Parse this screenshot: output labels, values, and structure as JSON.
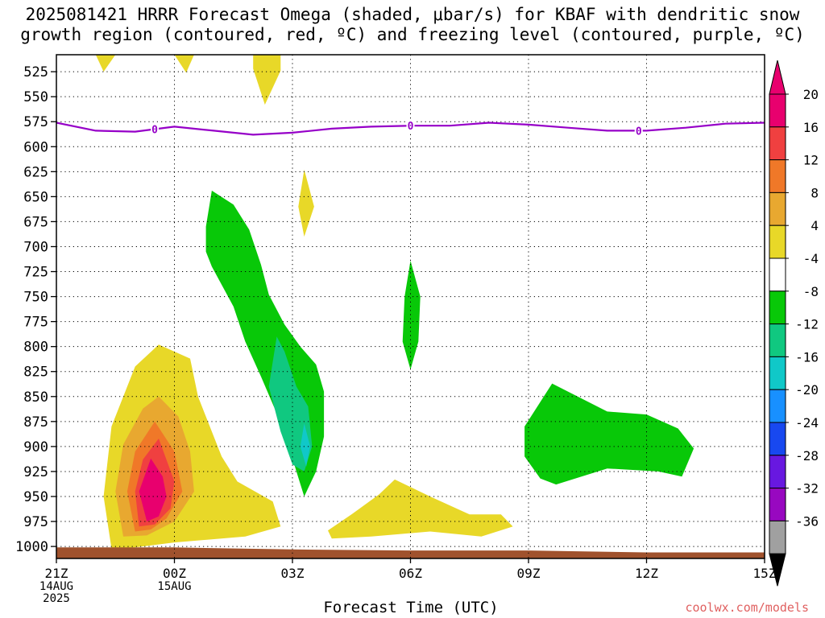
{
  "header": {
    "title_line1": "2025081421 HRRR Forecast Omega (shaded, μbar/s) for KBAF with dendritic snow",
    "title_line2": "growth region (contoured, red, ºC) and freezing level (contoured, purple, ºC)"
  },
  "watermark": "coolwx.com/models",
  "chart_data": {
    "type": "heatmap",
    "xlabel": "Forecast Time (UTC)",
    "ylabel": "",
    "x_ticks": [
      {
        "value": 0,
        "lines": [
          "21Z",
          "14AUG",
          "2025"
        ]
      },
      {
        "value": 3,
        "lines": [
          "00Z",
          "15AUG"
        ]
      },
      {
        "value": 6,
        "lines": [
          "03Z"
        ]
      },
      {
        "value": 9,
        "lines": [
          "06Z"
        ]
      },
      {
        "value": 12,
        "lines": [
          "09Z"
        ]
      },
      {
        "value": 15,
        "lines": [
          "12Z"
        ]
      },
      {
        "value": 18,
        "lines": [
          "15Z"
        ]
      }
    ],
    "xlim": [
      0,
      18
    ],
    "y_ticks": [
      525,
      550,
      575,
      600,
      625,
      650,
      675,
      700,
      725,
      750,
      775,
      800,
      825,
      850,
      875,
      900,
      925,
      950,
      975,
      1000
    ],
    "ylim": [
      1012,
      508
    ],
    "grid": true,
    "colorbar": {
      "labels": [
        "20",
        "16",
        "12",
        "8",
        "4",
        "-4",
        "-8",
        "-12",
        "-16",
        "-20",
        "-24",
        "-28",
        "-32",
        "-36"
      ],
      "colors": [
        "#e8006e",
        "#f04040",
        "#f07828",
        "#e8a830",
        "#e8d828",
        "#ffffff",
        "#08c808",
        "#10c880",
        "#10c8c8",
        "#1890ff",
        "#1848f0",
        "#6818e0",
        "#9808c0",
        "#a0a0a0"
      ],
      "top_color": "#e8006e",
      "bottom_color": "#000000"
    },
    "freezing_level": {
      "color": "#9600c8",
      "label": "0",
      "label_x": [
        2.5,
        9.0,
        14.8
      ],
      "points": [
        [
          0,
          576
        ],
        [
          1,
          584
        ],
        [
          2,
          585
        ],
        [
          3,
          580
        ],
        [
          4,
          584
        ],
        [
          5,
          588
        ],
        [
          6,
          586
        ],
        [
          7,
          582
        ],
        [
          8,
          580
        ],
        [
          9,
          579
        ],
        [
          10,
          579
        ],
        [
          11,
          576
        ],
        [
          12,
          578
        ],
        [
          13,
          581
        ],
        [
          14,
          584
        ],
        [
          15,
          584
        ],
        [
          16,
          581
        ],
        [
          17,
          577
        ],
        [
          18,
          576
        ]
      ]
    },
    "surface": {
      "color": "#a0522d",
      "points": [
        [
          0,
          1001
        ],
        [
          3,
          1001
        ],
        [
          6,
          1003
        ],
        [
          9,
          1004
        ],
        [
          12,
          1004
        ],
        [
          15,
          1006
        ],
        [
          18,
          1006
        ]
      ]
    },
    "regions": [
      {
        "name": "omega-positive-4",
        "color": "#e8d828",
        "points": [
          [
            1.0,
            508
          ],
          [
            1.5,
            508
          ],
          [
            1.2,
            525
          ]
        ]
      },
      {
        "name": "omega-positive-4",
        "color": "#e8d828",
        "points": [
          [
            3.0,
            508
          ],
          [
            3.5,
            508
          ],
          [
            3.3,
            526
          ]
        ]
      },
      {
        "name": "omega-positive-4",
        "color": "#e8d828",
        "points": [
          [
            5.0,
            508
          ],
          [
            5.7,
            508
          ],
          [
            5.7,
            524
          ],
          [
            5.3,
            558
          ],
          [
            5.0,
            522
          ]
        ]
      },
      {
        "name": "omega-positive-4",
        "color": "#e8d828",
        "points": [
          [
            6.3,
            623
          ],
          [
            6.55,
            660
          ],
          [
            6.3,
            690
          ],
          [
            6.15,
            660
          ]
        ]
      },
      {
        "name": "omega-positive-4",
        "color": "#e8d828",
        "points": [
          [
            1.4,
            1002
          ],
          [
            1.2,
            950
          ],
          [
            1.4,
            880
          ],
          [
            2.0,
            820
          ],
          [
            2.6,
            798
          ],
          [
            3.4,
            812
          ],
          [
            3.6,
            850
          ],
          [
            4.2,
            910
          ],
          [
            4.6,
            935
          ],
          [
            5.5,
            955
          ],
          [
            5.7,
            980
          ],
          [
            4.8,
            990
          ],
          [
            3.0,
            996
          ],
          [
            2.0,
            1001
          ]
        ]
      },
      {
        "name": "omega-positive-4",
        "color": "#e8d828",
        "points": [
          [
            6.9,
            984
          ],
          [
            7.5,
            968
          ],
          [
            8.2,
            948
          ],
          [
            8.6,
            933
          ],
          [
            9.5,
            950
          ],
          [
            10.5,
            968
          ],
          [
            11.3,
            968
          ],
          [
            11.6,
            980
          ],
          [
            10.8,
            990
          ],
          [
            9.5,
            985
          ],
          [
            8.0,
            990
          ],
          [
            7.0,
            992
          ]
        ]
      },
      {
        "name": "omega-positive-8",
        "color": "#e8a830",
        "points": [
          [
            1.7,
            990
          ],
          [
            1.5,
            945
          ],
          [
            1.7,
            898
          ],
          [
            2.2,
            862
          ],
          [
            2.6,
            850
          ],
          [
            3.1,
            870
          ],
          [
            3.4,
            905
          ],
          [
            3.5,
            945
          ],
          [
            3.0,
            975
          ],
          [
            2.3,
            989
          ]
        ]
      },
      {
        "name": "omega-positive-12",
        "color": "#f07828",
        "points": [
          [
            2.0,
            985
          ],
          [
            1.8,
            945
          ],
          [
            2.0,
            905
          ],
          [
            2.5,
            875
          ],
          [
            3.0,
            905
          ],
          [
            3.2,
            945
          ],
          [
            2.8,
            972
          ],
          [
            2.4,
            983
          ]
        ]
      },
      {
        "name": "omega-positive-16",
        "color": "#f04040",
        "points": [
          [
            2.1,
            980
          ],
          [
            2.0,
            945
          ],
          [
            2.2,
            913
          ],
          [
            2.6,
            892
          ],
          [
            3.0,
            935
          ],
          [
            2.9,
            962
          ],
          [
            2.5,
            978
          ]
        ]
      },
      {
        "name": "omega-positive-20",
        "color": "#e8006e",
        "points": [
          [
            2.3,
            975
          ],
          [
            2.1,
            945
          ],
          [
            2.4,
            912
          ],
          [
            2.7,
            930
          ],
          [
            2.8,
            950
          ],
          [
            2.6,
            970
          ]
        ]
      },
      {
        "name": "omega-negative-4",
        "color": "#08c808",
        "points": [
          [
            3.95,
            644
          ],
          [
            3.8,
            680
          ],
          [
            3.8,
            705
          ],
          [
            3.95,
            720
          ],
          [
            4.5,
            760
          ],
          [
            4.8,
            795
          ],
          [
            5.2,
            830
          ],
          [
            5.8,
            885
          ],
          [
            6.1,
            925
          ],
          [
            6.3,
            950
          ],
          [
            6.6,
            925
          ],
          [
            6.8,
            890
          ],
          [
            6.8,
            845
          ],
          [
            6.6,
            818
          ],
          [
            6.2,
            800
          ],
          [
            5.8,
            778
          ],
          [
            5.4,
            748
          ],
          [
            5.2,
            718
          ],
          [
            4.9,
            683
          ],
          [
            4.5,
            658
          ]
        ]
      },
      {
        "name": "omega-negative-4",
        "color": "#08c808",
        "points": [
          [
            9.0,
            714
          ],
          [
            9.25,
            750
          ],
          [
            9.2,
            795
          ],
          [
            9.0,
            823
          ],
          [
            8.8,
            795
          ],
          [
            8.85,
            750
          ]
        ]
      },
      {
        "name": "omega-negative-4",
        "color": "#08c808",
        "points": [
          [
            11.9,
            880
          ],
          [
            12.6,
            837
          ],
          [
            13.5,
            855
          ],
          [
            14.0,
            865
          ],
          [
            15.0,
            868
          ],
          [
            15.8,
            882
          ],
          [
            16.2,
            902
          ],
          [
            15.9,
            930
          ],
          [
            15.3,
            925
          ],
          [
            14.0,
            922
          ],
          [
            12.7,
            938
          ],
          [
            12.3,
            932
          ],
          [
            11.9,
            910
          ]
        ]
      },
      {
        "name": "omega-negative-8",
        "color": "#10c880",
        "points": [
          [
            5.6,
            790
          ],
          [
            5.4,
            840
          ],
          [
            5.7,
            885
          ],
          [
            6.0,
            918
          ],
          [
            6.3,
            925
          ],
          [
            6.5,
            900
          ],
          [
            6.4,
            860
          ],
          [
            6.1,
            840
          ],
          [
            5.8,
            805
          ]
        ]
      },
      {
        "name": "omega-negative-12",
        "color": "#10c8c8",
        "points": [
          [
            6.3,
            877
          ],
          [
            6.2,
            900
          ],
          [
            6.35,
            920
          ],
          [
            6.45,
            900
          ]
        ]
      }
    ]
  }
}
